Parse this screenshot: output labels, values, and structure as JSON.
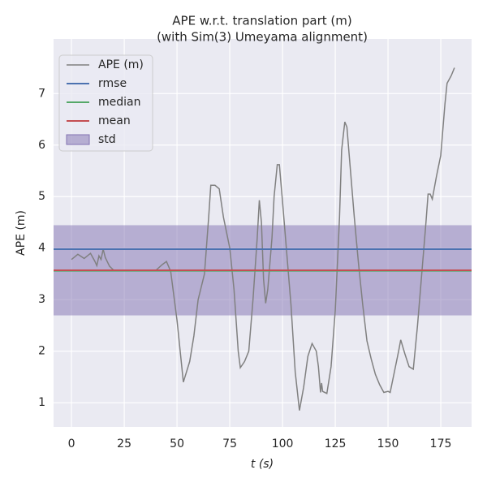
{
  "chart_data": {
    "type": "line",
    "title": "APE w.r.t. translation part (m)",
    "subtitle": "(with Sim(3) Umeyama alignment)",
    "x_label": "t (s)",
    "y_label": "APE (m)",
    "xlim": [
      -8.5,
      189.6
    ],
    "ylim": [
      0.53,
      8.06
    ],
    "xticks": [
      0,
      25,
      50,
      75,
      100,
      125,
      150,
      175
    ],
    "yticks": [
      1,
      2,
      3,
      4,
      5,
      6,
      7
    ],
    "grid": true,
    "legend": "upper left",
    "x": [
      0,
      3,
      6,
      9,
      11,
      12,
      13,
      14,
      15,
      16,
      18,
      20,
      30,
      40,
      43,
      45,
      47,
      50,
      53,
      56,
      58,
      60,
      63,
      65,
      66,
      68,
      70,
      72,
      75,
      77,
      79,
      80,
      82,
      84,
      86,
      88,
      89,
      90,
      91,
      92,
      93,
      95,
      96,
      97.5,
      98.5,
      100,
      102,
      104,
      106,
      108,
      110,
      112,
      114,
      116,
      117,
      118,
      118.5,
      119,
      121,
      123,
      125,
      127,
      128,
      129.5,
      130.5,
      132,
      134,
      136,
      138,
      140,
      142,
      144,
      146,
      148,
      150,
      151,
      153,
      155,
      156,
      158,
      160,
      162,
      164,
      166,
      168,
      169,
      170,
      171,
      173,
      175,
      177,
      178,
      180,
      181.5
    ],
    "series": [
      {
        "name": "APE (m)",
        "color": "#808080",
        "values": [
          3.78,
          3.88,
          3.8,
          3.9,
          3.75,
          3.66,
          3.85,
          3.78,
          3.98,
          3.82,
          3.65,
          3.57,
          3.57,
          3.57,
          3.68,
          3.74,
          3.55,
          2.6,
          1.4,
          1.8,
          2.3,
          3.0,
          3.5,
          4.6,
          5.22,
          5.22,
          5.15,
          4.6,
          4.0,
          3.2,
          2.0,
          1.68,
          1.8,
          2.0,
          3.0,
          4.2,
          4.93,
          4.5,
          3.4,
          2.93,
          3.2,
          4.2,
          5.0,
          5.62,
          5.62,
          4.9,
          3.9,
          2.9,
          1.6,
          0.85,
          1.3,
          1.9,
          2.15,
          2.0,
          1.7,
          1.2,
          1.38,
          1.22,
          1.18,
          1.7,
          2.8,
          4.6,
          5.9,
          6.45,
          6.35,
          5.6,
          4.6,
          3.7,
          2.9,
          2.2,
          1.85,
          1.55,
          1.35,
          1.2,
          1.22,
          1.2,
          1.6,
          2.0,
          2.22,
          1.95,
          1.7,
          1.65,
          2.5,
          3.5,
          4.5,
          5.05,
          5.05,
          4.95,
          5.4,
          5.8,
          6.8,
          7.2,
          7.35,
          7.5
        ]
      }
    ],
    "stats": [
      {
        "name": "rmse",
        "color": "#4c72b0",
        "value": 3.98
      },
      {
        "name": "median",
        "color": "#55a868",
        "value": 3.56
      },
      {
        "name": "mean",
        "color": "#c44e52",
        "value": 3.57
      }
    ],
    "std": {
      "name": "std",
      "color": "#8172b2",
      "value": 0.875
    }
  }
}
